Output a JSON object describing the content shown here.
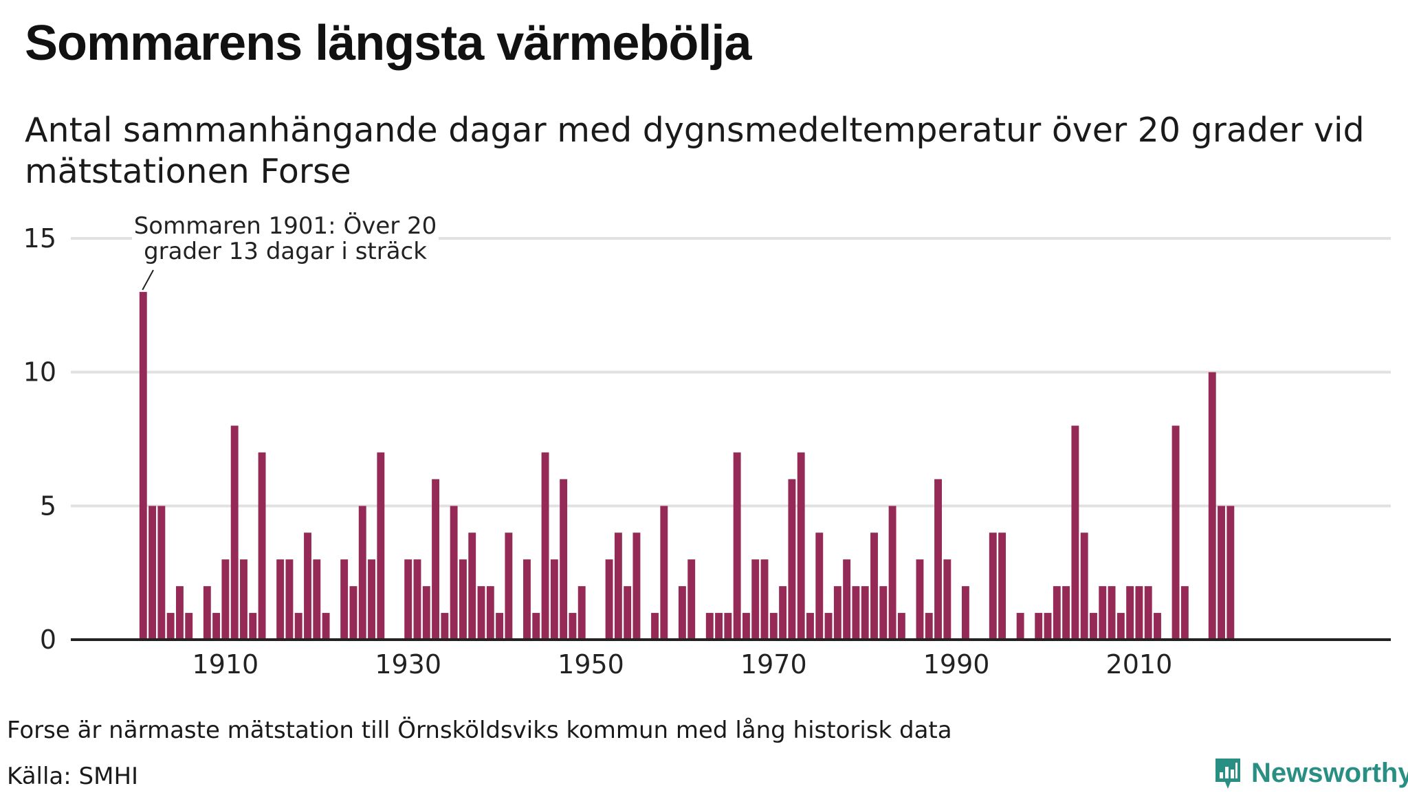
{
  "title": "Sommarens längsta värmebölja",
  "subtitle": "Antal sammanhängande dagar med dygnsmedeltemperatur över 20 grader vid mätstationen Forse",
  "footer": {
    "note": "Forse är närmaste mätstation till Örnsköldsviks kommun med lång historisk data",
    "source": "Källa: SMHI"
  },
  "brand": {
    "name": "Newsworthy",
    "icon": "newsworthy-logo-icon",
    "color": "#2a8f83"
  },
  "chart_data": {
    "type": "bar",
    "title": "Sommarens längsta värmebölja",
    "subtitle": "Antal sammanhängande dagar med dygnsmedeltemperatur över 20 grader vid mätstationen Forse",
    "xlabel": "",
    "ylabel": "",
    "bar_color": "#952a56",
    "grid": true,
    "ylim": [
      0,
      15
    ],
    "yticks": [
      0,
      5,
      10,
      15
    ],
    "xlim": [
      1899.7,
      2031.3
    ],
    "xticks": [
      1910,
      1930,
      1950,
      1970,
      1990,
      2010
    ],
    "x": [
      1901,
      1902,
      1903,
      1904,
      1905,
      1906,
      1907,
      1908,
      1909,
      1910,
      1911,
      1912,
      1913,
      1914,
      1915,
      1916,
      1917,
      1918,
      1919,
      1920,
      1921,
      1922,
      1923,
      1924,
      1925,
      1926,
      1927,
      1928,
      1929,
      1930,
      1931,
      1932,
      1933,
      1934,
      1935,
      1936,
      1937,
      1938,
      1939,
      1940,
      1941,
      1942,
      1943,
      1944,
      1945,
      1946,
      1947,
      1948,
      1949,
      1950,
      1951,
      1952,
      1953,
      1954,
      1955,
      1956,
      1957,
      1958,
      1959,
      1960,
      1961,
      1962,
      1963,
      1964,
      1965,
      1966,
      1967,
      1968,
      1969,
      1970,
      1971,
      1972,
      1973,
      1974,
      1975,
      1976,
      1977,
      1978,
      1979,
      1980,
      1981,
      1982,
      1983,
      1984,
      1985,
      1986,
      1987,
      1988,
      1989,
      1990,
      1991,
      1992,
      1993,
      1994,
      1995,
      1996,
      1997,
      1998,
      1999,
      2000,
      2001,
      2002,
      2003,
      2004,
      2005,
      2006,
      2007,
      2008,
      2009,
      2010,
      2011,
      2012,
      2013,
      2014,
      2015,
      2016,
      2017,
      2018,
      2019,
      2020
    ],
    "values": [
      13,
      5,
      5,
      1,
      2,
      1,
      0,
      2,
      1,
      3,
      8,
      3,
      1,
      7,
      0,
      3,
      3,
      1,
      4,
      3,
      1,
      0,
      3,
      2,
      5,
      3,
      7,
      0,
      0,
      3,
      3,
      2,
      6,
      1,
      5,
      3,
      4,
      2,
      2,
      1,
      4,
      0,
      3,
      1,
      7,
      3,
      6,
      1,
      2,
      0,
      0,
      3,
      4,
      2,
      4,
      0,
      1,
      5,
      0,
      2,
      3,
      0,
      1,
      1,
      1,
      7,
      1,
      3,
      3,
      1,
      2,
      6,
      7,
      1,
      4,
      1,
      2,
      3,
      2,
      2,
      4,
      2,
      5,
      1,
      0,
      3,
      1,
      6,
      3,
      0,
      2,
      0,
      0,
      4,
      4,
      0,
      1,
      0,
      1,
      1,
      2,
      2,
      8,
      4,
      1,
      2,
      2,
      1,
      2,
      2,
      2,
      1,
      0,
      8,
      2,
      0,
      0,
      10,
      5,
      5
    ],
    "annotations": [
      {
        "x": 1901,
        "y": 13,
        "text": "Sommaren 1901: Över 20 grader 13 dagar i sträck",
        "lines": [
          "Sommaren 1901: Över 20",
          "grader 13 dagar i sträck"
        ]
      }
    ]
  }
}
